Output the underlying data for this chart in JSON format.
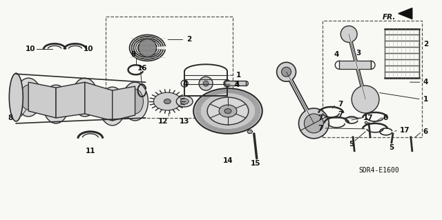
{
  "background_color": "#f5f5f0",
  "figure_width": 6.4,
  "figure_height": 3.19,
  "dpi": 100,
  "diagram_ref": "SDR4-E1600",
  "line_color": "#2a2a2a",
  "text_color": "#111111",
  "font_size": 8
}
